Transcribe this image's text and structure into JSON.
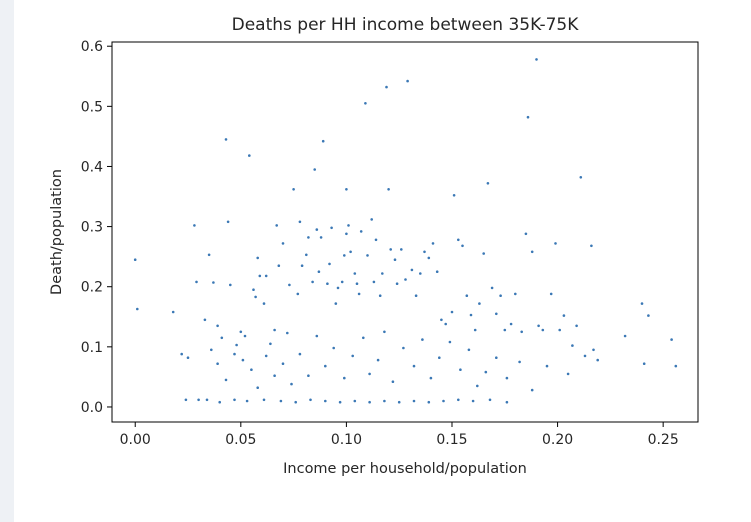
{
  "chart_data": {
    "type": "scatter",
    "title": "Deaths per HH income between 35K-75K",
    "xlabel": "Income per household/population",
    "ylabel": "Death/population",
    "xlim": [
      -0.011,
      0.2665
    ],
    "ylim": [
      -0.025,
      0.607
    ],
    "xticks": [
      "0.00",
      "0.05",
      "0.10",
      "0.15",
      "0.20",
      "0.25"
    ],
    "xtick_values": [
      0.0,
      0.05,
      0.1,
      0.15,
      0.2,
      0.25
    ],
    "yticks": [
      "0.0",
      "0.1",
      "0.2",
      "0.3",
      "0.4",
      "0.5",
      "0.6"
    ],
    "ytick_values": [
      0.0,
      0.1,
      0.2,
      0.3,
      0.4,
      0.5,
      0.6
    ],
    "grid": false,
    "point_color": "#3b78b5",
    "points": [
      [
        0.0,
        0.245
      ],
      [
        0.001,
        0.163
      ],
      [
        0.018,
        0.158
      ],
      [
        0.022,
        0.088
      ],
      [
        0.025,
        0.082
      ],
      [
        0.024,
        0.012
      ],
      [
        0.028,
        0.302
      ],
      [
        0.029,
        0.208
      ],
      [
        0.033,
        0.145
      ],
      [
        0.035,
        0.253
      ],
      [
        0.036,
        0.095
      ],
      [
        0.037,
        0.207
      ],
      [
        0.039,
        0.135
      ],
      [
        0.041,
        0.115
      ],
      [
        0.043,
        0.445
      ],
      [
        0.044,
        0.308
      ],
      [
        0.045,
        0.203
      ],
      [
        0.047,
        0.088
      ],
      [
        0.048,
        0.103
      ],
      [
        0.05,
        0.125
      ],
      [
        0.052,
        0.118
      ],
      [
        0.054,
        0.418
      ],
      [
        0.056,
        0.195
      ],
      [
        0.057,
        0.183
      ],
      [
        0.058,
        0.248
      ],
      [
        0.059,
        0.218
      ],
      [
        0.061,
        0.172
      ],
      [
        0.062,
        0.218
      ],
      [
        0.064,
        0.105
      ],
      [
        0.066,
        0.128
      ],
      [
        0.067,
        0.302
      ],
      [
        0.068,
        0.235
      ],
      [
        0.07,
        0.272
      ],
      [
        0.072,
        0.123
      ],
      [
        0.073,
        0.203
      ],
      [
        0.075,
        0.362
      ],
      [
        0.077,
        0.188
      ],
      [
        0.078,
        0.308
      ],
      [
        0.079,
        0.235
      ],
      [
        0.081,
        0.253
      ],
      [
        0.082,
        0.282
      ],
      [
        0.084,
        0.208
      ],
      [
        0.085,
        0.395
      ],
      [
        0.086,
        0.295
      ],
      [
        0.087,
        0.225
      ],
      [
        0.088,
        0.282
      ],
      [
        0.089,
        0.442
      ],
      [
        0.091,
        0.205
      ],
      [
        0.092,
        0.238
      ],
      [
        0.093,
        0.298
      ],
      [
        0.095,
        0.172
      ],
      [
        0.096,
        0.198
      ],
      [
        0.098,
        0.208
      ],
      [
        0.099,
        0.252
      ],
      [
        0.1,
        0.288
      ],
      [
        0.1,
        0.362
      ],
      [
        0.101,
        0.302
      ],
      [
        0.102,
        0.258
      ],
      [
        0.104,
        0.222
      ],
      [
        0.105,
        0.205
      ],
      [
        0.106,
        0.188
      ],
      [
        0.107,
        0.292
      ],
      [
        0.109,
        0.505
      ],
      [
        0.11,
        0.252
      ],
      [
        0.112,
        0.312
      ],
      [
        0.113,
        0.208
      ],
      [
        0.114,
        0.278
      ],
      [
        0.116,
        0.185
      ],
      [
        0.117,
        0.222
      ],
      [
        0.119,
        0.532
      ],
      [
        0.12,
        0.362
      ],
      [
        0.121,
        0.262
      ],
      [
        0.123,
        0.245
      ],
      [
        0.124,
        0.205
      ],
      [
        0.126,
        0.262
      ],
      [
        0.128,
        0.212
      ],
      [
        0.129,
        0.542
      ],
      [
        0.131,
        0.228
      ],
      [
        0.133,
        0.185
      ],
      [
        0.135,
        0.222
      ],
      [
        0.137,
        0.258
      ],
      [
        0.139,
        0.248
      ],
      [
        0.141,
        0.272
      ],
      [
        0.143,
        0.225
      ],
      [
        0.145,
        0.145
      ],
      [
        0.147,
        0.138
      ],
      [
        0.15,
        0.158
      ],
      [
        0.151,
        0.352
      ],
      [
        0.153,
        0.278
      ],
      [
        0.155,
        0.268
      ],
      [
        0.157,
        0.185
      ],
      [
        0.159,
        0.153
      ],
      [
        0.161,
        0.128
      ],
      [
        0.163,
        0.172
      ],
      [
        0.165,
        0.255
      ],
      [
        0.167,
        0.372
      ],
      [
        0.169,
        0.198
      ],
      [
        0.171,
        0.155
      ],
      [
        0.173,
        0.185
      ],
      [
        0.175,
        0.128
      ],
      [
        0.178,
        0.138
      ],
      [
        0.18,
        0.188
      ],
      [
        0.183,
        0.125
      ],
      [
        0.185,
        0.288
      ],
      [
        0.186,
        0.482
      ],
      [
        0.188,
        0.258
      ],
      [
        0.19,
        0.578
      ],
      [
        0.191,
        0.135
      ],
      [
        0.193,
        0.128
      ],
      [
        0.195,
        0.068
      ],
      [
        0.197,
        0.188
      ],
      [
        0.199,
        0.272
      ],
      [
        0.201,
        0.128
      ],
      [
        0.203,
        0.152
      ],
      [
        0.205,
        0.055
      ],
      [
        0.207,
        0.102
      ],
      [
        0.209,
        0.135
      ],
      [
        0.211,
        0.382
      ],
      [
        0.213,
        0.085
      ],
      [
        0.216,
        0.268
      ],
      [
        0.217,
        0.095
      ],
      [
        0.219,
        0.078
      ],
      [
        0.232,
        0.118
      ],
      [
        0.24,
        0.172
      ],
      [
        0.241,
        0.072
      ],
      [
        0.243,
        0.152
      ],
      [
        0.254,
        0.112
      ],
      [
        0.256,
        0.068
      ],
      [
        0.188,
        0.028
      ],
      [
        0.182,
        0.075
      ],
      [
        0.176,
        0.048
      ],
      [
        0.171,
        0.082
      ],
      [
        0.166,
        0.058
      ],
      [
        0.162,
        0.035
      ],
      [
        0.158,
        0.095
      ],
      [
        0.154,
        0.062
      ],
      [
        0.149,
        0.108
      ],
      [
        0.144,
        0.082
      ],
      [
        0.14,
        0.048
      ],
      [
        0.136,
        0.112
      ],
      [
        0.132,
        0.068
      ],
      [
        0.127,
        0.098
      ],
      [
        0.122,
        0.042
      ],
      [
        0.118,
        0.125
      ],
      [
        0.115,
        0.078
      ],
      [
        0.111,
        0.055
      ],
      [
        0.108,
        0.115
      ],
      [
        0.103,
        0.085
      ],
      [
        0.099,
        0.048
      ],
      [
        0.094,
        0.098
      ],
      [
        0.09,
        0.068
      ],
      [
        0.086,
        0.118
      ],
      [
        0.082,
        0.052
      ],
      [
        0.078,
        0.088
      ],
      [
        0.074,
        0.038
      ],
      [
        0.07,
        0.072
      ],
      [
        0.066,
        0.052
      ],
      [
        0.062,
        0.085
      ],
      [
        0.058,
        0.032
      ],
      [
        0.055,
        0.062
      ],
      [
        0.051,
        0.078
      ],
      [
        0.047,
        0.012
      ],
      [
        0.043,
        0.045
      ],
      [
        0.039,
        0.072
      ],
      [
        0.034,
        0.012
      ],
      [
        0.03,
        0.012
      ],
      [
        0.04,
        0.008
      ],
      [
        0.053,
        0.01
      ],
      [
        0.061,
        0.012
      ],
      [
        0.069,
        0.01
      ],
      [
        0.076,
        0.008
      ],
      [
        0.083,
        0.012
      ],
      [
        0.09,
        0.01
      ],
      [
        0.097,
        0.008
      ],
      [
        0.104,
        0.01
      ],
      [
        0.111,
        0.008
      ],
      [
        0.118,
        0.01
      ],
      [
        0.125,
        0.008
      ],
      [
        0.132,
        0.01
      ],
      [
        0.139,
        0.008
      ],
      [
        0.146,
        0.01
      ],
      [
        0.153,
        0.012
      ],
      [
        0.16,
        0.01
      ],
      [
        0.168,
        0.012
      ],
      [
        0.176,
        0.008
      ]
    ]
  }
}
